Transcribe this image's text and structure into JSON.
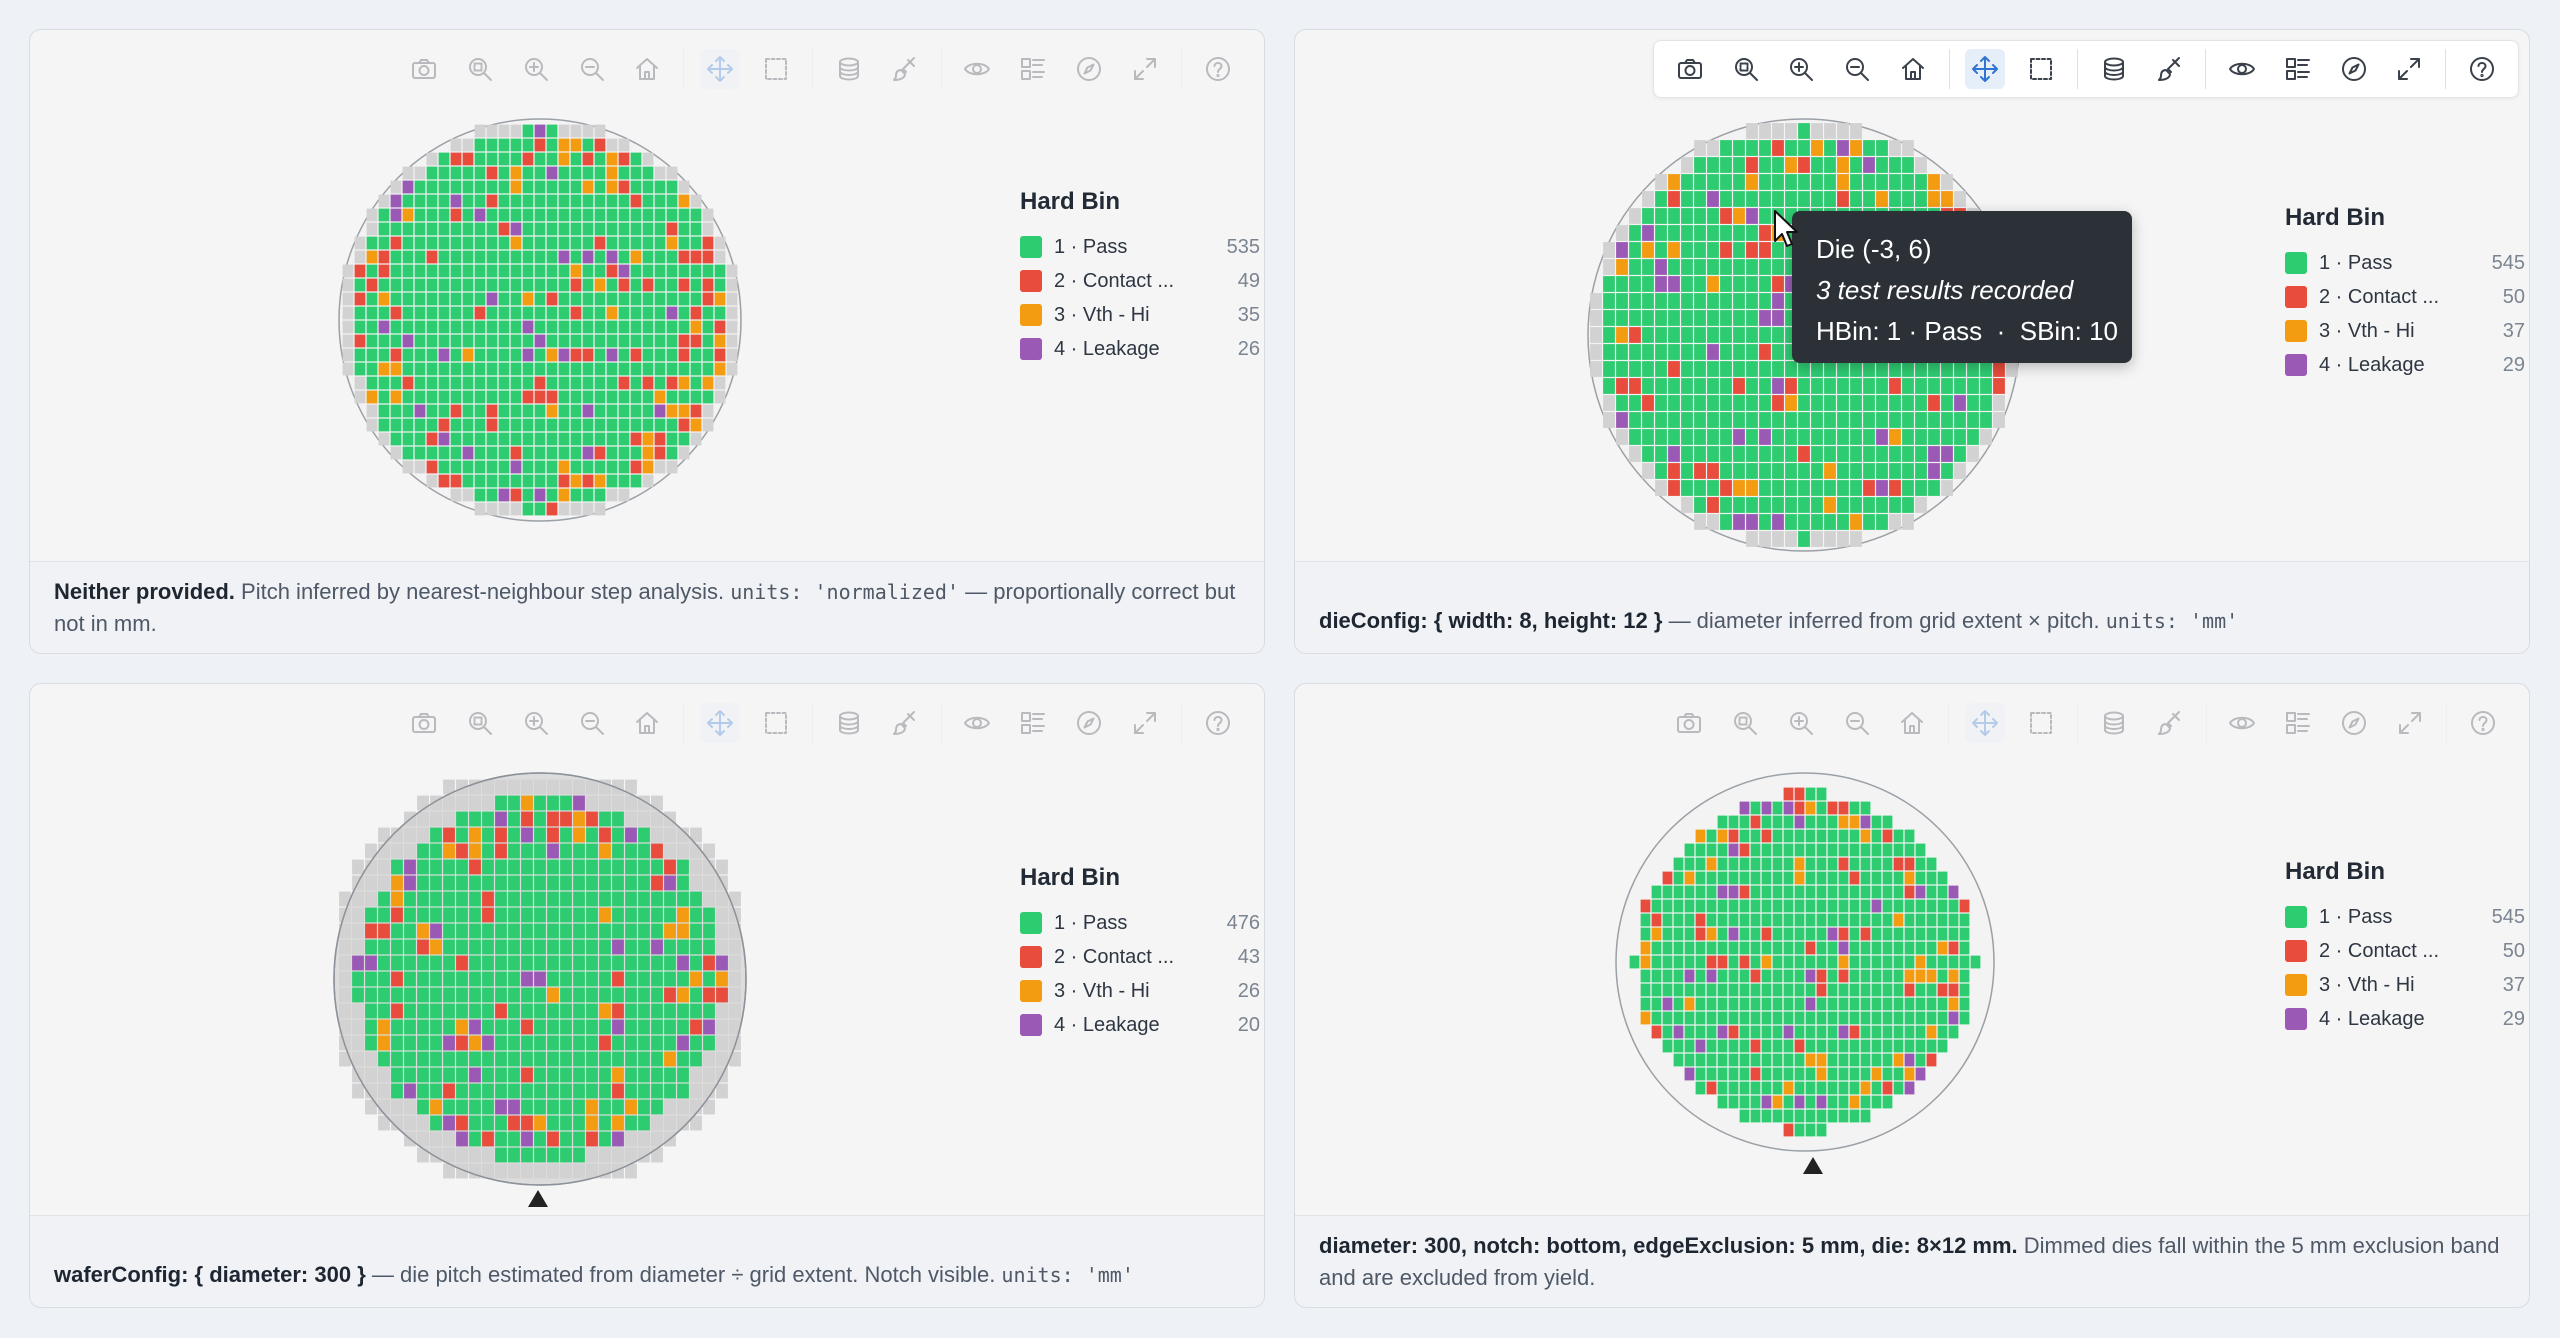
{
  "toolbar_icons": [
    "camera-icon",
    "zoom-region-icon",
    "zoom-in-icon",
    "zoom-out-icon",
    "home-icon",
    "pan-icon",
    "box-select-icon",
    "layers-icon",
    "brush-icon",
    "eye-icon",
    "legend-icon",
    "compass-icon",
    "fullscreen-icon",
    "help-icon"
  ],
  "colors": {
    "pass": "#2ecc71",
    "contact": "#e74c3c",
    "vth": "#f39c12",
    "leakage": "#9b59b6",
    "dimmed": "#d2d2d2"
  },
  "legend_title": "Hard Bin",
  "panels": [
    {
      "legend": [
        {
          "label": "1 · Pass",
          "count": "535"
        },
        {
          "label": "2 · Contact ...",
          "count": "49"
        },
        {
          "label": "3 · Vth - Hi",
          "count": "35"
        },
        {
          "label": "4 · Leakage",
          "count": "26"
        }
      ],
      "caption": {
        "bold": "Neither provided.",
        "text1": " Pitch inferred by nearest-neighbour step analysis. ",
        "code": "units: 'normalized'",
        "text2": " — proportionally correct but not in mm."
      }
    },
    {
      "legend": [
        {
          "label": "1 · Pass",
          "count": "545"
        },
        {
          "label": "2 · Contact ...",
          "count": "50"
        },
        {
          "label": "3 · Vth - Hi",
          "count": "37"
        },
        {
          "label": "4 · Leakage",
          "count": "29"
        }
      ],
      "caption": {
        "bold": "dieConfig: { width: 8, height: 12 }",
        "text1": " — diameter inferred from grid extent × pitch. ",
        "code": "units: 'mm'",
        "text2": ""
      }
    },
    {
      "legend": [
        {
          "label": "1 · Pass",
          "count": "476"
        },
        {
          "label": "2 · Contact ...",
          "count": "43"
        },
        {
          "label": "3 · Vth - Hi",
          "count": "26"
        },
        {
          "label": "4 · Leakage",
          "count": "20"
        }
      ],
      "caption": {
        "bold": "waferConfig: { diameter: 300 }",
        "text1": " — die pitch estimated from diameter ÷ grid extent. Notch visible. ",
        "code": "units: 'mm'",
        "text2": ""
      }
    },
    {
      "legend": [
        {
          "label": "1 · Pass",
          "count": "545"
        },
        {
          "label": "2 · Contact ...",
          "count": "50"
        },
        {
          "label": "3 · Vth - Hi",
          "count": "37"
        },
        {
          "label": "4 · Leakage",
          "count": "29"
        }
      ],
      "caption": {
        "bold": "diameter: 300, notch: bottom, edgeExclusion: 5 mm, die: 8×12 mm.",
        "text1": " Dimmed dies fall within the 5 mm exclusion band and are excluded from yield.",
        "code": "",
        "text2": ""
      }
    }
  ],
  "tooltip": {
    "title": "Die (-3, 6)",
    "subtitle": "3 test results recorded",
    "detail": "HBin: 1 · Pass  ·  SBin: 10"
  }
}
